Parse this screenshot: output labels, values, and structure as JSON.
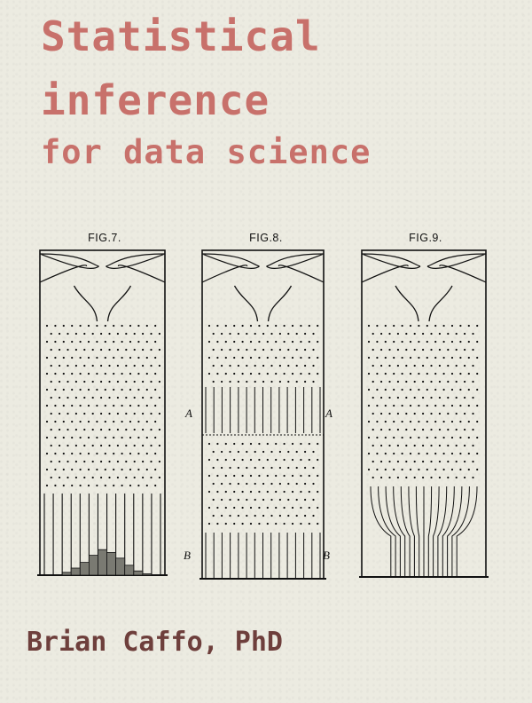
{
  "cover": {
    "title_line1": "Statistical",
    "title_line2": "inference",
    "title_line3": "for data science",
    "author": "Brian Caffo, PhD"
  },
  "figures": [
    {
      "caption": "FIG.7."
    },
    {
      "caption": "FIG.8.",
      "label_a_left": "A",
      "label_a_right": "A",
      "label_b_left": "B",
      "label_b_right": "B"
    },
    {
      "caption": "FIG.9."
    }
  ],
  "colors": {
    "title": "#c8716b",
    "author": "#6e3f3c",
    "background": "#ecebe1",
    "ink": "#111111"
  }
}
